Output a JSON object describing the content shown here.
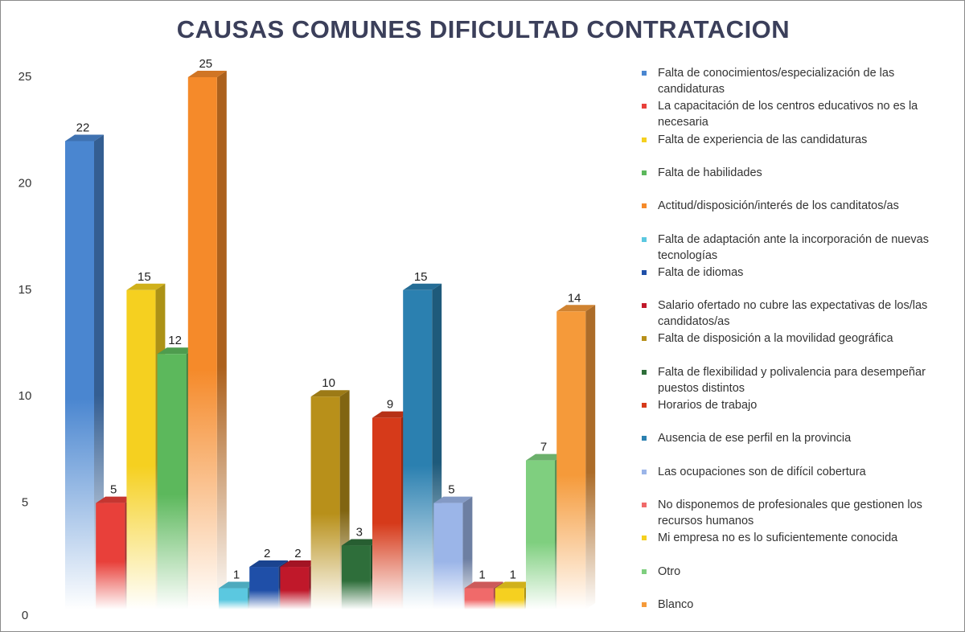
{
  "chart_data": {
    "type": "bar",
    "title": "CAUSAS COMUNES DIFICULTAD CONTRATACION",
    "categories": [
      null
    ],
    "ylim": [
      0,
      25
    ],
    "yticks": [
      0,
      5,
      10,
      15,
      20,
      25
    ],
    "grid": false,
    "legend": "right",
    "series": [
      {
        "name": "Falta de conocimientos/especialización de las candidaturas",
        "color": "#4a86d0",
        "values": [
          22
        ]
      },
      {
        "name": "La capacitación de los centros educativos no es la necesaria",
        "color": "#e8403a",
        "values": [
          5
        ]
      },
      {
        "name": "Falta de experiencia de las candidaturas",
        "color": "#f5d020",
        "values": [
          15
        ]
      },
      {
        "name": "Falta de habilidades",
        "color": "#5cb85c",
        "values": [
          12
        ]
      },
      {
        "name": "Actitud/disposición/interés de los canditatos/as",
        "color": "#f58a2a",
        "values": [
          25
        ]
      },
      {
        "name": "Falta de adaptación ante la incorporación de nuevas tecnologías",
        "color": "#5bc8e0",
        "values": [
          1
        ]
      },
      {
        "name": "Falta de idiomas",
        "color": "#1f4fa8",
        "values": [
          2
        ]
      },
      {
        "name": "Salario ofertado no cubre las expectativas de los/las candidatos/as",
        "color": "#c0182a",
        "values": [
          2
        ]
      },
      {
        "name": "Falta de disposición a la movilidad geográfica",
        "color": "#b8901a",
        "values": [
          10
        ]
      },
      {
        "name": "Falta de flexibilidad y polivalencia para desempeñar puestos distintos",
        "color": "#2e6e3a",
        "values": [
          3
        ]
      },
      {
        "name": "Horarios de trabajo",
        "color": "#d63a1a",
        "values": [
          9
        ]
      },
      {
        "name": "Ausencia de ese perfil en la provincia",
        "color": "#2b80b0",
        "values": [
          15
        ]
      },
      {
        "name": "Las ocupaciones son de difícil cobertura",
        "color": "#9bb5e8",
        "values": [
          5
        ]
      },
      {
        "name": "No disponemos de profesionales que gestionen los recursos humanos",
        "color": "#f06a6a",
        "values": [
          1
        ]
      },
      {
        "name": "Mi empresa no es lo suficientemente conocida",
        "color": "#f5d020",
        "values": [
          1
        ]
      },
      {
        "name": "Otro",
        "color": "#7fcf7f",
        "values": [
          7
        ]
      },
      {
        "name": "Blanco",
        "color": "#f59a3a",
        "values": [
          14
        ]
      }
    ]
  }
}
